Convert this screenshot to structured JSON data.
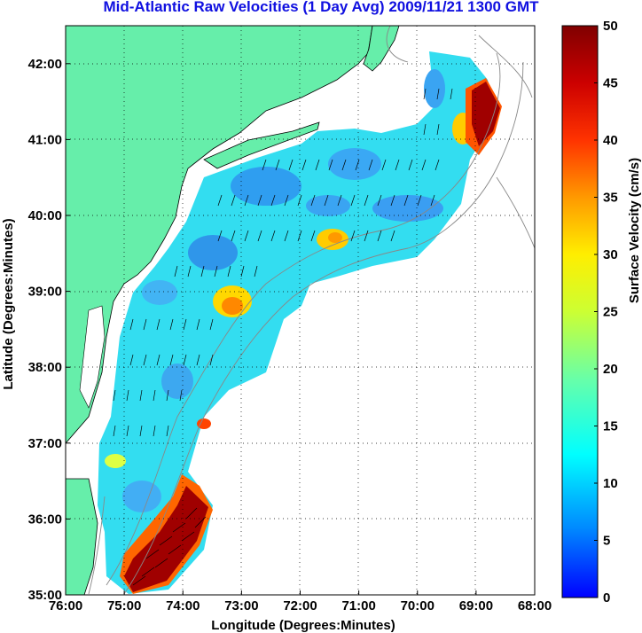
{
  "title": "Mid-Atlantic Raw Velocities (1 Day Avg) 2009/11/21 1300 GMT",
  "map": {
    "xlabel": "Longitude (Degrees:Minutes)",
    "ylabel": "Latitude (Degrees:Minutes)",
    "lon_ticks": [
      "76:00",
      "75:00",
      "74:00",
      "73:00",
      "72:00",
      "71:00",
      "70:00",
      "69:00",
      "68:00"
    ],
    "lat_ticks": [
      "42:00",
      "41:00",
      "40:00",
      "39:00",
      "38:00",
      "37:00",
      "36:00",
      "35:00"
    ],
    "lon_range": [
      -76,
      -68
    ],
    "lat_range": [
      35,
      42.5
    ],
    "land_color": "#66eeaa",
    "grid": "dotted"
  },
  "colorbar": {
    "label": "Surface Velocity (cm/s)",
    "ticks": [
      "0",
      "5",
      "10",
      "15",
      "20",
      "25",
      "30",
      "35",
      "40",
      "45",
      "50"
    ],
    "range": [
      0,
      50
    ],
    "colormap": [
      "#0000ff",
      "#00aaff",
      "#00ffff",
      "#aaff55",
      "#ffff00",
      "#ffaa00",
      "#ff0000",
      "#880000"
    ]
  }
}
